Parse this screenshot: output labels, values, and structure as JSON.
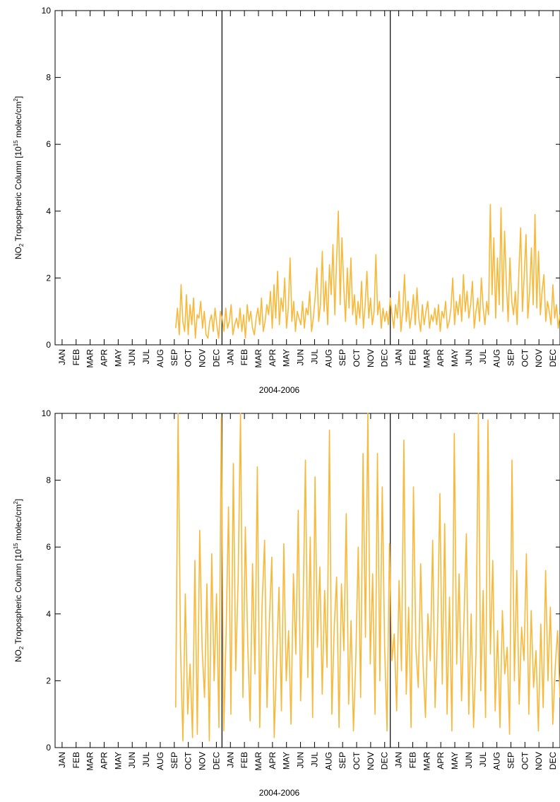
{
  "chart_data": [
    {
      "type": "line",
      "xlabel": "2004-2006",
      "ylabel": {
        "prefix": "NO",
        "sub": "2",
        "mid": " Tropospheric Column [10",
        "sup1": "15",
        "mid2": " molec/cm",
        "sup2": "2",
        "end": "]"
      },
      "ylim": [
        0,
        10
      ],
      "yticks": [
        "0",
        "2",
        "4",
        "6",
        "8",
        "10"
      ],
      "month_labels": [
        "JAN",
        "FEB",
        "MAR",
        "APR",
        "MAY",
        "JUN",
        "JUL",
        "AUG",
        "SEP",
        "OCT",
        "NOV",
        "DEC",
        "JAN",
        "FEB",
        "MAR",
        "APR",
        "MAY",
        "JUN",
        "JUL",
        "AUG",
        "SEP",
        "OCT",
        "NOV",
        "DEC",
        "JAN",
        "FEB",
        "MAR",
        "APR",
        "MAY",
        "JUN",
        "JUL",
        "AUG",
        "SEP",
        "OCT",
        "NOV",
        "DEC"
      ],
      "year_boundaries_month_index": [
        12,
        24
      ],
      "grid": false,
      "series_color": "#f8b83a",
      "series": [
        {
          "values": [
            0.5,
            1.1,
            0.3,
            1.8,
            0.7,
            0.4,
            1.5,
            0.3,
            1.2,
            0.6,
            1.4,
            0.2,
            0.9,
            0.8,
            1.3,
            0.5,
            1.0,
            0.3,
            0.2,
            0.7,
            0.9,
            0.4,
            1.1,
            0.6,
            0.2,
            1.0,
            0.8,
            0.4,
            1.1,
            0.5,
            0.7,
            1.2,
            0.3,
            0.6,
            0.8,
            0.5,
            1.1,
            0.4,
            0.9,
            0.2,
            1.2,
            0.7,
            1.0,
            0.5,
            0.3,
            0.8,
            1.1,
            0.6,
            1.4,
            0.4,
            0.7,
            1.2,
            0.9,
            1.6,
            0.5,
            1.8,
            0.8,
            2.2,
            0.6,
            1.4,
            1.0,
            2.0,
            0.5,
            1.1,
            2.6,
            0.7,
            1.3,
            0.4,
            1.0,
            0.8,
            0.6,
            1.3,
            0.5,
            1.1,
            0.9,
            1.6,
            0.4,
            0.8,
            1.4,
            2.3,
            0.7,
            1.2,
            2.8,
            1.0,
            1.9,
            0.6,
            2.4,
            1.5,
            3.0,
            0.9,
            2.5,
            4.0,
            1.2,
            3.2,
            1.8,
            0.7,
            2.3,
            1.1,
            2.6,
            0.9,
            1.5,
            0.6,
            1.3,
            0.8,
            1.9,
            0.5,
            1.2,
            2.2,
            0.8,
            1.4,
            0.6,
            1.0,
            2.7,
            0.9,
            1.3,
            0.5,
            1.1,
            0.7,
            1.0,
            0.6,
            1.4,
            0.9,
            0.5,
            1.2,
            0.8,
            1.6,
            0.4,
            1.0,
            2.1,
            0.7,
            1.3,
            0.5,
            0.9,
            1.5,
            0.6,
            1.7,
            0.8,
            0.4,
            1.2,
            0.6,
            1.0,
            1.3,
            0.5,
            0.9,
            0.7,
            1.1,
            0.6,
            1.2,
            0.4,
            1.0,
            0.8,
            1.3,
            0.5,
            0.7,
            1.1,
            2.0,
            0.6,
            1.3,
            0.9,
            1.5,
            0.7,
            2.1,
            1.0,
            1.6,
            0.8,
            1.2,
            1.9,
            0.5,
            1.0,
            1.4,
            0.7,
            2.0,
            1.1,
            0.6,
            1.3,
            0.9,
            4.2,
            1.5,
            3.2,
            0.8,
            2.6,
            1.2,
            4.1,
            1.0,
            3.4,
            1.8,
            0.7,
            2.6,
            1.3,
            0.9,
            1.6,
            0.6,
            2.2,
            3.5,
            1.0,
            2.1,
            3.3,
            0.8,
            1.6,
            2.9,
            1.2,
            3.9,
            1.1,
            2.8,
            0.9,
            1.6,
            2.1,
            0.7,
            1.3,
            1.0,
            0.6,
            1.8,
            0.8,
            1.2,
            0.5,
            0.9
          ]
        }
      ]
    },
    {
      "type": "line",
      "xlabel": "2004-2006",
      "ylabel": {
        "prefix": "NO",
        "sub": "2",
        "mid": " Tropospheric Column [10",
        "sup1": "15",
        "mid2": " molec/cm",
        "sup2": "2",
        "end": "]"
      },
      "ylim": [
        0,
        10
      ],
      "yticks": [
        "0",
        "2",
        "4",
        "6",
        "8",
        "10"
      ],
      "month_labels": [
        "JAN",
        "FEB",
        "MAR",
        "APR",
        "MAY",
        "JUN",
        "JUL",
        "AUG",
        "SEP",
        "OCT",
        "NOV",
        "DEC",
        "JAN",
        "FEB",
        "MAR",
        "APR",
        "MAY",
        "JUN",
        "JUL",
        "AUG",
        "SEP",
        "OCT",
        "NOV",
        "DEC",
        "JAN",
        "FEB",
        "MAR",
        "APR",
        "MAY",
        "JUN",
        "JUL",
        "AUG",
        "SEP",
        "OCT",
        "NOV",
        "DEC"
      ],
      "year_boundaries_month_index": [
        12,
        24
      ],
      "grid": false,
      "series_color": "#f8b83a",
      "series": [
        {
          "values": [
            1.2,
            10,
            3.0,
            0.2,
            4.6,
            1.0,
            2.5,
            0.3,
            5.6,
            0.4,
            6.5,
            3.0,
            1.5,
            4.9,
            0.2,
            5.8,
            2.0,
            4.6,
            0.6,
            9.9,
            0.5,
            3.4,
            7.2,
            1.0,
            8.5,
            2.3,
            5.0,
            10,
            1.5,
            6.6,
            3.1,
            0.8,
            5.5,
            2.2,
            8.4,
            0.6,
            4.3,
            6.2,
            1.2,
            3.8,
            5.7,
            0.3,
            2.6,
            4.8,
            1.1,
            6.1,
            2.0,
            3.5,
            0.7,
            5.2,
            2.8,
            7.1,
            1.4,
            4.0,
            8.6,
            2.1,
            6.3,
            0.9,
            8.1,
            3.0,
            5.4,
            1.6,
            4.7,
            2.4,
            9.5,
            1.0,
            3.6,
            5.1,
            0.6,
            4.9,
            2.9,
            7.0,
            1.3,
            3.8,
            0.5,
            2.7,
            6.0,
            1.5,
            8.8,
            3.3,
            10,
            2.5,
            5.2,
            1.0,
            8.8,
            2.0,
            7.8,
            3.0,
            0.5,
            6.1,
            2.6,
            3.4,
            1.1,
            5.0,
            2.3,
            9.2,
            1.6,
            4.2,
            0.6,
            7.8,
            3.0,
            1.8,
            5.5,
            2.5,
            0.9,
            4.0,
            2.6,
            6.2,
            1.2,
            3.4,
            7.6,
            1.9,
            6.7,
            1.0,
            4.5,
            0.5,
            9.4,
            2.5,
            5.2,
            1.4,
            3.8,
            6.4,
            1.0,
            4.0,
            0.6,
            2.8,
            10,
            1.7,
            4.7,
            0.9,
            9.8,
            2.8,
            5.6,
            1.1,
            3.5,
            0.6,
            4.1,
            2.2,
            3.0,
            0.4,
            8.6,
            2.0,
            5.3,
            1.3,
            3.6,
            2.6,
            5.8,
            1.0,
            4.1,
            1.8,
            2.9,
            0.5,
            3.7,
            1.2,
            5.3,
            2.0,
            4.2,
            0.7,
            2.4,
            3.5,
            1.5
          ]
        }
      ]
    }
  ]
}
